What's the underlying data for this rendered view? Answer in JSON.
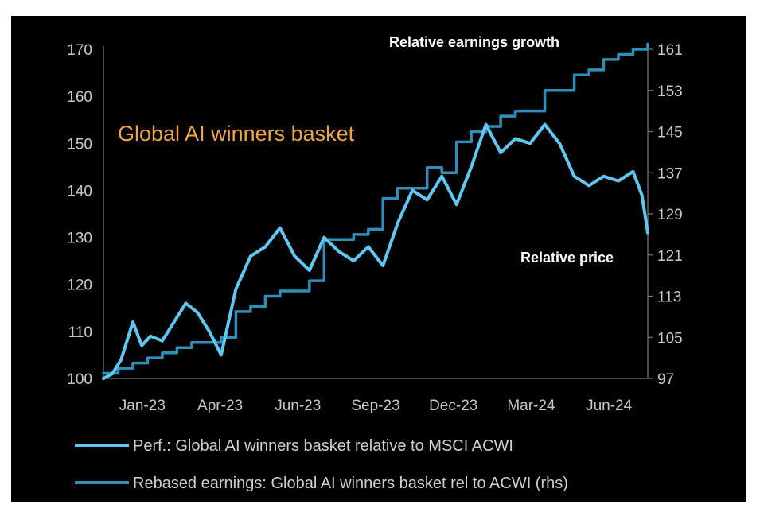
{
  "chart_data": {
    "type": "line",
    "title": "Global AI winners basket",
    "annotations": {
      "earnings": "Relative earnings growth",
      "price": "Relative price"
    },
    "x_labels": [
      "Jan-23",
      "Apr-23",
      "Jun-23",
      "Sep-23",
      "Dec-23",
      "Mar-24",
      "Jun-24"
    ],
    "left_axis": {
      "min": 100,
      "max": 170,
      "ticks": [
        "100",
        "110",
        "120",
        "130",
        "140",
        "150",
        "160",
        "170"
      ]
    },
    "right_axis": {
      "min": 97,
      "max": 161,
      "ticks": [
        "97",
        "105",
        "113",
        "121",
        "129",
        "137",
        "145",
        "153",
        "161"
      ]
    },
    "series": [
      {
        "name": "Perf.: Global AI winners basket relative to MSCI ACWI",
        "axis": "left",
        "color": "#5ec8f2",
        "x": [
          0,
          0.3,
          0.6,
          1,
          1.3,
          1.6,
          2,
          2.4,
          2.8,
          3.2,
          3.6,
          4,
          4.5,
          5,
          5.5,
          6,
          6.5,
          7,
          7.5,
          8,
          8.5,
          9,
          9.5,
          10,
          10.5,
          11,
          11.5,
          12,
          12.5,
          13,
          13.5,
          14,
          14.5,
          15,
          15.5,
          16,
          16.5,
          17,
          17.5,
          18,
          18.3,
          18.5
        ],
        "values": [
          100,
          101,
          104,
          112,
          107,
          109,
          108,
          112,
          116,
          114,
          110,
          105,
          119,
          126,
          128,
          132,
          126,
          123,
          130,
          127,
          125,
          128,
          124,
          133,
          140,
          138,
          143,
          137,
          145,
          154,
          148,
          151,
          150,
          154,
          150,
          143,
          141,
          143,
          142,
          144,
          139,
          131
        ]
      },
      {
        "name": "Rebased earnings: Global AI winners basket rel to ACWI (rhs)",
        "axis": "right",
        "color": "#2e8fb8",
        "x": [
          0,
          0.5,
          1,
          1.5,
          2,
          2.5,
          3,
          3.5,
          4,
          4.5,
          5,
          5.5,
          6,
          6.5,
          7,
          7.5,
          8,
          8.5,
          9,
          9.5,
          10,
          10.5,
          11,
          11.5,
          12,
          12.5,
          13,
          13.5,
          14,
          14.5,
          15,
          15.5,
          16,
          16.5,
          17,
          17.5,
          18,
          18.5
        ],
        "values": [
          98,
          99,
          100,
          101,
          102,
          103,
          104,
          104,
          105,
          110,
          111,
          113,
          114,
          114,
          116,
          124,
          124,
          125,
          126,
          132,
          134,
          134,
          138,
          137,
          143,
          145,
          146,
          148,
          149,
          149,
          153,
          153,
          156,
          157,
          159,
          160,
          161,
          162
        ]
      }
    ]
  }
}
